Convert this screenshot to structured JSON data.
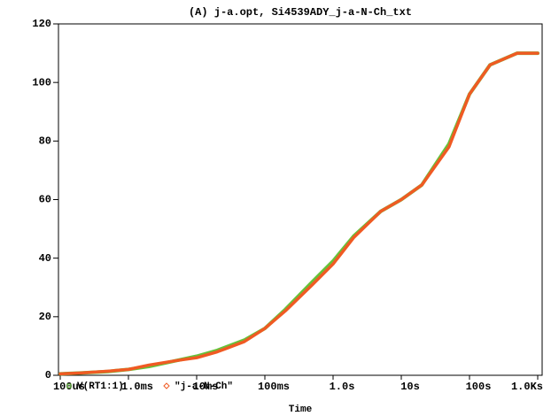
{
  "chart_data": {
    "type": "line",
    "title": "(A) j-a.opt, Si4539ADY_j-a-N-Ch_txt",
    "x_label": "Time",
    "log_x": true,
    "x": [
      0.0001,
      0.0002,
      0.0005,
      0.001,
      0.002,
      0.005,
      0.01,
      0.02,
      0.05,
      0.1,
      0.2,
      0.5,
      1,
      2,
      5,
      10,
      20,
      50,
      100,
      200,
      500,
      1000
    ],
    "series": [
      {
        "name": "V(RT1:1)",
        "color": "#66c23a",
        "marker": "square",
        "values": [
          0.5,
          0.8,
          1.3,
          2,
          3,
          5,
          6.5,
          8.5,
          12,
          16,
          22.5,
          32,
          39,
          47.5,
          56,
          60,
          65,
          79,
          96,
          106,
          110,
          110
        ]
      },
      {
        "name": "\"j-a-N-Ch\"",
        "color": "#f05a23",
        "marker": "diamond",
        "values": [
          0.5,
          0.8,
          1.4,
          2,
          3.5,
          5,
          6,
          8,
          11.5,
          16,
          22,
          31,
          38,
          47,
          56,
          60,
          65,
          78,
          96,
          106,
          110,
          110
        ]
      }
    ],
    "xlim": [
      0.0001,
      1000
    ],
    "xticks": [
      {
        "value": 0.0001,
        "label": "100us"
      },
      {
        "value": 0.001,
        "label": "1.0ms"
      },
      {
        "value": 0.01,
        "label": "10ms"
      },
      {
        "value": 0.1,
        "label": "100ms"
      },
      {
        "value": 1,
        "label": "1.0s"
      },
      {
        "value": 10,
        "label": "10s"
      },
      {
        "value": 100,
        "label": "100s"
      },
      {
        "value": 1000,
        "label": "1.0Ks"
      }
    ],
    "ylim": [
      0,
      120
    ],
    "yticks": [
      0,
      20,
      40,
      60,
      80,
      100,
      120
    ]
  }
}
